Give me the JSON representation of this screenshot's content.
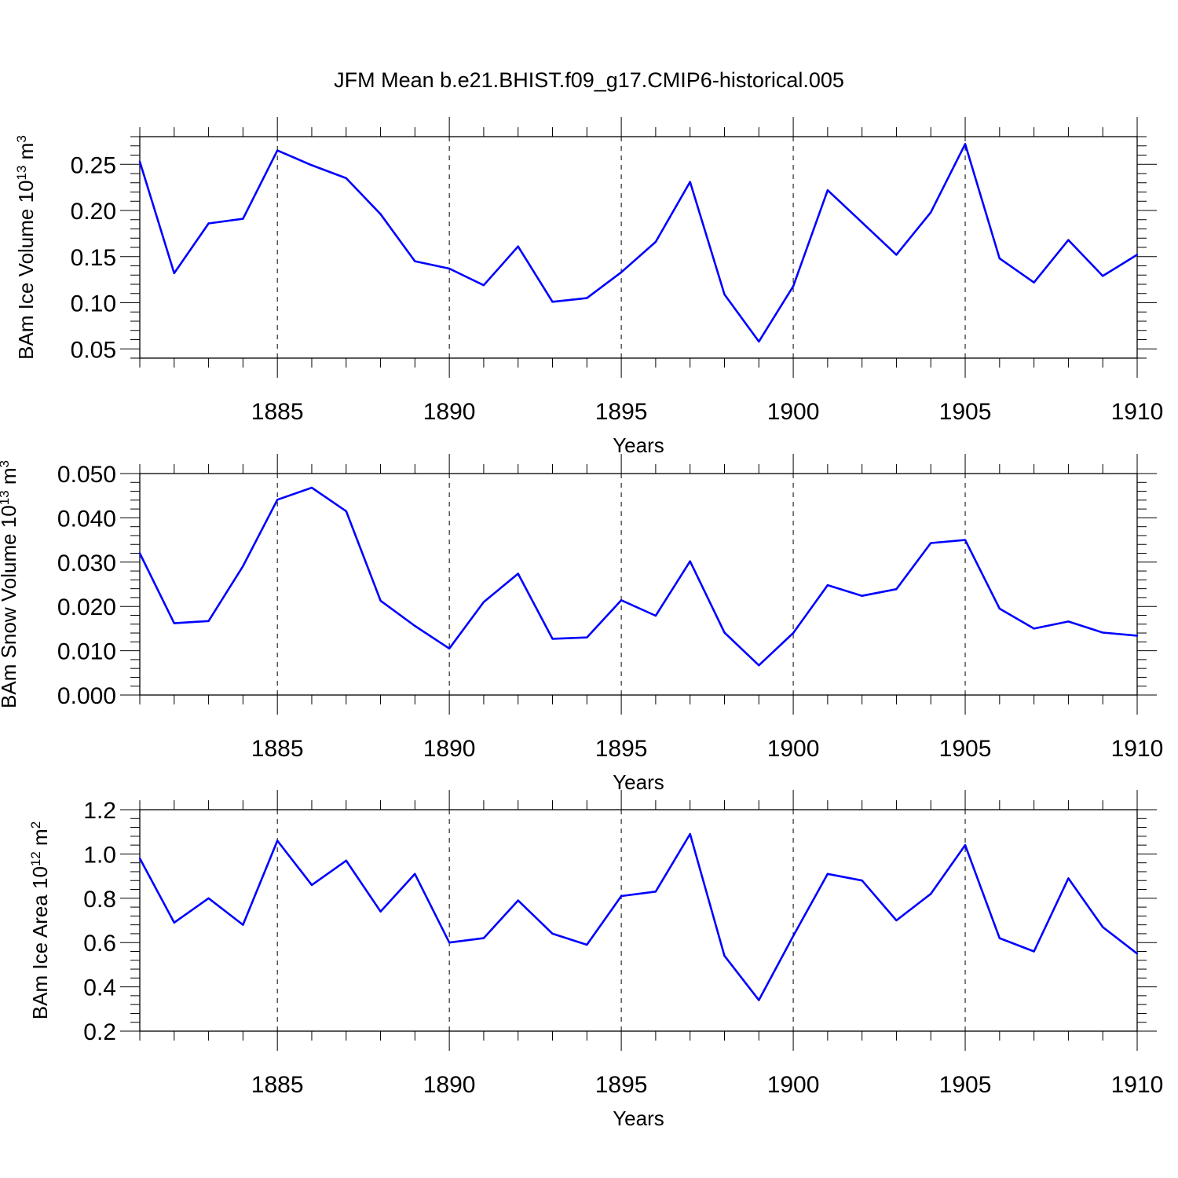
{
  "title": "JFM Mean b.e21.BHIST.f09_g17.CMIP6-historical.005",
  "line_color": "#0000ff",
  "chart_data": [
    {
      "type": "line",
      "xlabel": "Years",
      "ylabel": "BAm Ice Volume 10",
      "ylabel_exp": "13",
      "ylabel_unit": " m",
      "ylabel_unit_exp": "3",
      "xlim": [
        1881,
        1910
      ],
      "ylim": [
        0.04,
        0.28
      ],
      "xticks": [
        1885,
        1890,
        1895,
        1900,
        1905,
        1910
      ],
      "xtick_labels": [
        "1885",
        "1890",
        "1895",
        "1900",
        "1905",
        "1910"
      ],
      "yticks": [
        0.05,
        0.1,
        0.15,
        0.2,
        0.25
      ],
      "ytick_labels": [
        "0.05",
        "0.10",
        "0.15",
        "0.20",
        "0.25"
      ],
      "x": [
        1881,
        1882,
        1883,
        1884,
        1885,
        1886,
        1887,
        1888,
        1889,
        1890,
        1891,
        1892,
        1893,
        1894,
        1895,
        1896,
        1897,
        1898,
        1899,
        1900,
        1901,
        1902,
        1903,
        1904,
        1905,
        1906,
        1907,
        1908,
        1909,
        1910
      ],
      "y": [
        0.253,
        0.132,
        0.186,
        0.191,
        0.265,
        0.249,
        0.235,
        0.196,
        0.145,
        0.137,
        0.119,
        0.161,
        0.101,
        0.105,
        0.133,
        0.166,
        0.231,
        0.109,
        0.058,
        0.118,
        0.222,
        0.187,
        0.152,
        0.198,
        0.272,
        0.148,
        0.122,
        0.168,
        0.129,
        0.152
      ],
      "grid": "vertical dashed at major ticks"
    },
    {
      "type": "line",
      "xlabel": "Years",
      "ylabel": "BAm Snow Volume 10",
      "ylabel_exp": "13",
      "ylabel_unit": " m",
      "ylabel_unit_exp": "3",
      "xlim": [
        1881,
        1910
      ],
      "ylim": [
        0.0,
        0.05
      ],
      "xticks": [
        1885,
        1890,
        1895,
        1900,
        1905,
        1910
      ],
      "xtick_labels": [
        "1885",
        "1890",
        "1895",
        "1900",
        "1905",
        "1910"
      ],
      "yticks": [
        0.0,
        0.01,
        0.02,
        0.03,
        0.04,
        0.05
      ],
      "ytick_labels": [
        "0.000",
        "0.010",
        "0.020",
        "0.030",
        "0.040",
        "0.050"
      ],
      "x": [
        1881,
        1882,
        1883,
        1884,
        1885,
        1886,
        1887,
        1888,
        1889,
        1890,
        1891,
        1892,
        1893,
        1894,
        1895,
        1896,
        1897,
        1898,
        1899,
        1900,
        1901,
        1902,
        1903,
        1904,
        1905,
        1906,
        1907,
        1908,
        1909,
        1910
      ],
      "y": [
        0.032,
        0.0162,
        0.0167,
        0.0291,
        0.0441,
        0.0468,
        0.0415,
        0.0213,
        0.0156,
        0.0105,
        0.021,
        0.0274,
        0.0127,
        0.013,
        0.0214,
        0.0179,
        0.0302,
        0.0141,
        0.0067,
        0.014,
        0.0248,
        0.0224,
        0.0239,
        0.0343,
        0.035,
        0.0195,
        0.015,
        0.0166,
        0.0141,
        0.0134
      ],
      "grid": "vertical dashed at major ticks"
    },
    {
      "type": "line",
      "xlabel": "Years",
      "ylabel": "BAm Ice Area 10",
      "ylabel_exp": "12",
      "ylabel_unit": " m",
      "ylabel_unit_exp": "2",
      "xlim": [
        1881,
        1910
      ],
      "ylim": [
        0.2,
        1.2
      ],
      "xticks": [
        1885,
        1890,
        1895,
        1900,
        1905,
        1910
      ],
      "xtick_labels": [
        "1885",
        "1890",
        "1895",
        "1900",
        "1905",
        "1910"
      ],
      "yticks": [
        0.2,
        0.4,
        0.6,
        0.8,
        1.0,
        1.2
      ],
      "ytick_labels": [
        "0.2",
        "0.4",
        "0.6",
        "0.8",
        "1.0",
        "1.2"
      ],
      "x": [
        1881,
        1882,
        1883,
        1884,
        1885,
        1886,
        1887,
        1888,
        1889,
        1890,
        1891,
        1892,
        1893,
        1894,
        1895,
        1896,
        1897,
        1898,
        1899,
        1900,
        1901,
        1902,
        1903,
        1904,
        1905,
        1906,
        1907,
        1908,
        1909,
        1910
      ],
      "y": [
        0.98,
        0.69,
        0.8,
        0.68,
        1.06,
        0.86,
        0.97,
        0.74,
        0.91,
        0.6,
        0.62,
        0.79,
        0.64,
        0.59,
        0.81,
        0.83,
        1.09,
        0.54,
        0.34,
        0.63,
        0.91,
        0.88,
        0.7,
        0.82,
        1.04,
        0.62,
        0.56,
        0.89,
        0.67,
        0.55
      ],
      "grid": "vertical dashed at major ticks"
    }
  ]
}
